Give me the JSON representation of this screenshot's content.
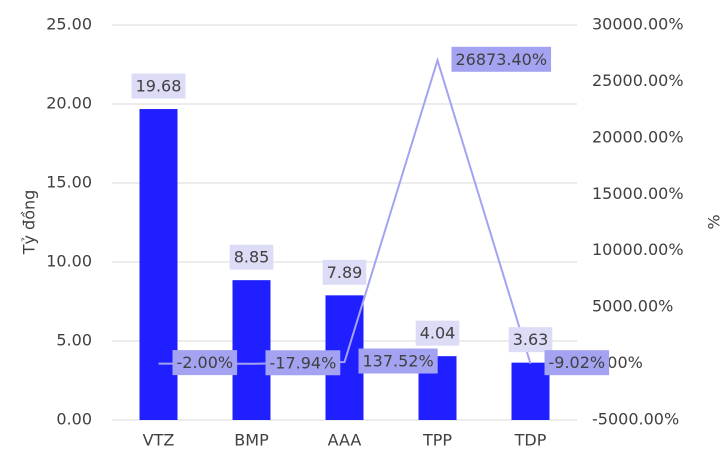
{
  "chart_data": {
    "type": "bar",
    "y_label": "Tỷ đồng",
    "y2_label": "%",
    "categories": [
      "VTZ",
      "BMP",
      "AAA",
      "TPP",
      "TDP"
    ],
    "series": [
      {
        "type": "bar",
        "color": "#1f1fff",
        "label_bg": "#dcdcf7",
        "values": [
          19.68,
          8.85,
          7.89,
          4.04,
          3.63
        ]
      },
      {
        "type": "line",
        "axis": "y2",
        "color": "#a3a3f2",
        "label_bg": "#a3a3f2",
        "values": [
          -2.0,
          -17.94,
          137.52,
          26873.4,
          -9.02
        ],
        "value_labels": [
          "-2.00%",
          "-17.94%",
          "137.52%",
          "26873.40%",
          "-9.02%"
        ]
      }
    ],
    "ylim": [
      0,
      25
    ],
    "yticks": [
      {
        "value": 0,
        "label": "0.00"
      },
      {
        "value": 5,
        "label": "5.00"
      },
      {
        "value": 10,
        "label": "10.00"
      },
      {
        "value": 15,
        "label": "15.00"
      },
      {
        "value": 20,
        "label": "20.00"
      },
      {
        "value": 25,
        "label": "25.00"
      }
    ],
    "y2lim": [
      -5000,
      30000
    ],
    "y2ticks": [
      {
        "value": -5000,
        "label": "-5000.00%"
      },
      {
        "value": 0,
        "label": "0.00%"
      },
      {
        "value": 5000,
        "label": "5000.00%"
      },
      {
        "value": 10000,
        "label": "10000.00%"
      },
      {
        "value": 15000,
        "label": "15000.00%"
      },
      {
        "value": 20000,
        "label": "20000.00%"
      },
      {
        "value": 25000,
        "label": "25000.00%"
      },
      {
        "value": 30000,
        "label": "30000.00%"
      }
    ],
    "grid": true
  }
}
